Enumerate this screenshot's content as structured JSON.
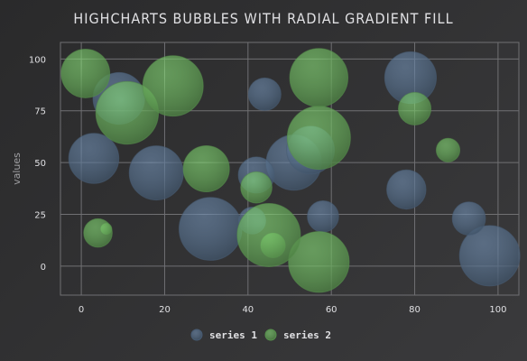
{
  "chart_data": {
    "type": "bubble",
    "title": "HIGHCHARTS BUBBLES WITH RADIAL GRADIENT FILL",
    "xlabel": "",
    "ylabel": "values",
    "xlim": [
      -5,
      105
    ],
    "ylim": [
      -14,
      108
    ],
    "xticks": [
      0,
      20,
      40,
      60,
      80,
      100
    ],
    "yticks": [
      0,
      25,
      50,
      75,
      100
    ],
    "grid": true,
    "legend_position": "bottom-center",
    "series": [
      {
        "name": "series 1",
        "color": "#7798BF",
        "points": [
          {
            "x": 9,
            "y": 81,
            "z": 63
          },
          {
            "x": 98,
            "y": 5,
            "z": 89
          },
          {
            "x": 51,
            "y": 50,
            "z": 73
          },
          {
            "x": 41,
            "y": 22,
            "z": 14
          },
          {
            "x": 58,
            "y": 24,
            "z": 20
          },
          {
            "x": 78,
            "y": 37,
            "z": 34
          },
          {
            "x": 55,
            "y": 56,
            "z": 53
          },
          {
            "x": 18,
            "y": 45,
            "z": 70
          },
          {
            "x": 42,
            "y": 44,
            "z": 28
          },
          {
            "x": 3,
            "y": 52,
            "z": 59
          },
          {
            "x": 31,
            "y": 18,
            "z": 97
          },
          {
            "x": 79,
            "y": 91,
            "z": 63
          },
          {
            "x": 93,
            "y": 23,
            "z": 23
          },
          {
            "x": 44,
            "y": 83,
            "z": 22
          }
        ]
      },
      {
        "name": "series 2",
        "color": "#90ee7e",
        "points": [
          {
            "x": 42,
            "y": 38,
            "z": 20
          },
          {
            "x": 6,
            "y": 18,
            "z": 1
          },
          {
            "x": 1,
            "y": 93,
            "z": 55
          },
          {
            "x": 57,
            "y": 2,
            "z": 90
          },
          {
            "x": 80,
            "y": 76,
            "z": 22
          },
          {
            "x": 11,
            "y": 74,
            "z": 96
          },
          {
            "x": 88,
            "y": 56,
            "z": 10
          },
          {
            "x": 30,
            "y": 47,
            "z": 49
          },
          {
            "x": 57,
            "y": 62,
            "z": 98
          },
          {
            "x": 4,
            "y": 16,
            "z": 16
          },
          {
            "x": 46,
            "y": 10,
            "z": 11
          },
          {
            "x": 22,
            "y": 87,
            "z": 89
          },
          {
            "x": 57,
            "y": 91,
            "z": 82
          },
          {
            "x": 45,
            "y": 15,
            "z": 98
          }
        ]
      }
    ]
  }
}
